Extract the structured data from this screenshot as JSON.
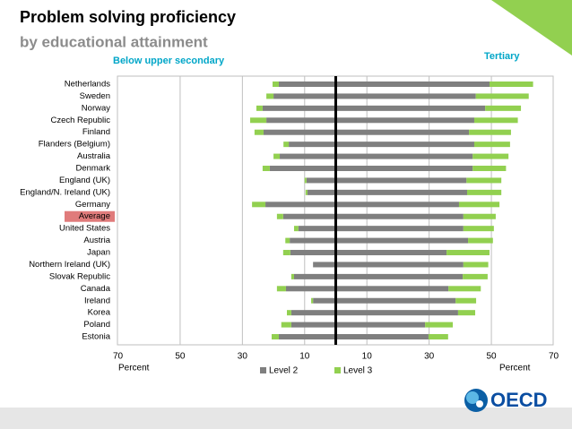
{
  "chart_data": {
    "type": "butterfly_bar",
    "title": "Problem solving proficiency",
    "subtitle": "by educational attainment",
    "left_title": "Below upper secondary",
    "right_title": "Tertiary",
    "xlabel": "Percent",
    "categories": [
      "Netherlands",
      "Sweden",
      "Norway",
      "Czech Republic",
      "Finland",
      "Flanders (Belgium)",
      "Australia",
      "Denmark",
      "England (UK)",
      "England/N. Ireland (UK)",
      "Germany",
      "Average",
      "United States",
      "Austria",
      "Japan",
      "Northern Ireland (UK)",
      "Slovak Republic",
      "Canada",
      "Ireland",
      "Korea",
      "Poland",
      "Estonia"
    ],
    "highlight": "Average",
    "highlight_color": "#e07b7b",
    "xlim": [
      0,
      70
    ],
    "xticks": [
      10,
      30,
      50,
      70
    ],
    "grid": true,
    "series": [
      {
        "name": "Level 2",
        "color": "#7f7f7f",
        "left_values": [
          18.3,
          20,
          23.5,
          22.3,
          23.2,
          15.1,
          18,
          21.2,
          9.4,
          9.1,
          22.6,
          16.9,
          12,
          14.8,
          14.6,
          7.3,
          13.4,
          16,
          7.3,
          14.3,
          14.3,
          18.3
        ],
        "right_values": [
          49.4,
          45,
          48,
          44.5,
          42.8,
          44.5,
          44,
          44,
          42,
          42.2,
          39.6,
          41,
          41,
          42.5,
          35.6,
          41,
          40.8,
          36.2,
          38.5,
          39.3,
          28.7,
          29.8
        ]
      },
      {
        "name": "Level 3",
        "color": "#92d050",
        "left_values": [
          2,
          2.3,
          2,
          5.2,
          2.9,
          1.7,
          2,
          2.3,
          0.6,
          0.6,
          4.3,
          2,
          1.4,
          1.4,
          2.3,
          0,
          0.9,
          2.9,
          0.6,
          1.4,
          3.2,
          2.3
        ],
        "right_values": [
          14,
          17,
          11.5,
          14,
          13.5,
          11.5,
          11.5,
          10.7,
          11.2,
          11,
          13,
          10.4,
          9.8,
          8,
          13.8,
          8,
          8,
          10.4,
          6.6,
          5.5,
          8.9,
          6.3
        ]
      }
    ],
    "logo_text": "OECD"
  }
}
